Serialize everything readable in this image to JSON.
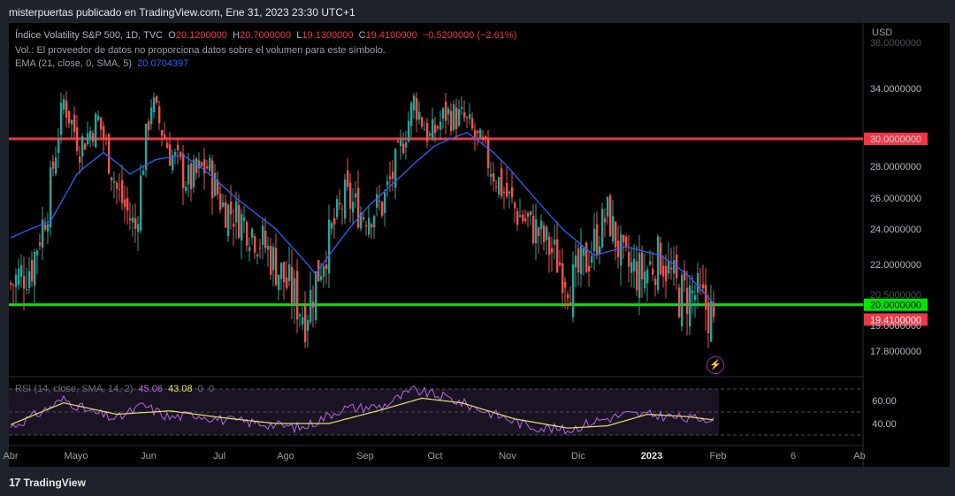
{
  "header": {
    "published": "misterpuertas publicado en TradingView.com, Ene 31, 2023 23:30 UTC+1"
  },
  "legend": {
    "symbol": "Índice Volatility S&P 500, 1D, TVC",
    "o_label": "O",
    "o_value": "20.1200000",
    "h_label": "H",
    "h_value": "20.7000000",
    "l_label": "L",
    "l_value": "19.1300000",
    "c_label": "C",
    "c_value": "19.4100000",
    "change": "−0.5200000 (−2.61%)",
    "volume_note": "Vol.: El proveedor de datos no proporciona datos sobre el volumen para este símbolo.",
    "ema_label": "EMA (21, close, 0, SMA, 5)",
    "ema_value": "20.0704397"
  },
  "rsi_legend": {
    "label": "RSI (14, close, SMA, 14, 2)",
    "rsi_value": "45.06",
    "sma_value": "43.08",
    "z1": "0",
    "z2": "0"
  },
  "currency": "USD",
  "footer": {
    "brand": "TradingView",
    "logo": "17"
  },
  "icons": {
    "bolt": "lightning-icon"
  },
  "colors": {
    "up": "#26a69a",
    "down": "#ef5350",
    "ema": "#2962ff",
    "resistance": "#f23645",
    "support": "#00e600",
    "rsi": "#b667e8",
    "rsi_sma": "#e4e36a"
  },
  "chart_data": [
    {
      "type": "candlestick",
      "series_name": "Índice Volatility S&P 500",
      "x_ticks": [
        "Abr",
        "Mayo",
        "Jun",
        "Jul",
        "Ago",
        "Sep",
        "Oct",
        "Nov",
        "Dic",
        "2023",
        "Feb",
        "6",
        "Ab"
      ],
      "y_ticks": [
        17.8,
        19,
        20.5,
        22,
        24,
        26,
        28,
        30,
        34,
        38
      ],
      "y_tick_labels": [
        "17.8000000",
        "19.0000000",
        "20.5000000",
        "22.0000000",
        "24.0000000",
        "26.0000000",
        "28.0000000",
        "30.0000000",
        "34.0000000",
        "38.0000000"
      ],
      "horizontal_lines": [
        {
          "value": 30,
          "label": "30.0000000",
          "color": "#f23645"
        },
        {
          "value": 20,
          "label": "20.0000000",
          "color": "#00e600"
        }
      ],
      "last_price": {
        "value": 19.41,
        "label": "19.4100000"
      },
      "waypoints": [
        {
          "d": 0,
          "v": 21.0
        },
        {
          "d": 8,
          "v": 22.0
        },
        {
          "d": 14,
          "v": 25.5
        },
        {
          "d": 20,
          "v": 33.0
        },
        {
          "d": 26,
          "v": 29.5
        },
        {
          "d": 33,
          "v": 31.5
        },
        {
          "d": 40,
          "v": 26.5
        },
        {
          "d": 47,
          "v": 24.0
        },
        {
          "d": 53,
          "v": 33.0
        },
        {
          "d": 60,
          "v": 29.0
        },
        {
          "d": 67,
          "v": 27.0
        },
        {
          "d": 74,
          "v": 28.0
        },
        {
          "d": 80,
          "v": 25.5
        },
        {
          "d": 88,
          "v": 24.5
        },
        {
          "d": 96,
          "v": 23.0
        },
        {
          "d": 104,
          "v": 21.0
        },
        {
          "d": 111,
          "v": 19.5
        },
        {
          "d": 119,
          "v": 23.0
        },
        {
          "d": 126,
          "v": 26.0
        },
        {
          "d": 133,
          "v": 25.0
        },
        {
          "d": 140,
          "v": 25.5
        },
        {
          "d": 146,
          "v": 28.5
        },
        {
          "d": 152,
          "v": 33.0
        },
        {
          "d": 158,
          "v": 30.0
        },
        {
          "d": 164,
          "v": 32.0
        },
        {
          "d": 171,
          "v": 31.5
        },
        {
          "d": 177,
          "v": 29.5
        },
        {
          "d": 184,
          "v": 27.0
        },
        {
          "d": 191,
          "v": 25.0
        },
        {
          "d": 198,
          "v": 24.0
        },
        {
          "d": 205,
          "v": 22.5
        },
        {
          "d": 212,
          "v": 21.0
        },
        {
          "d": 218,
          "v": 22.5
        },
        {
          "d": 225,
          "v": 25.0
        },
        {
          "d": 231,
          "v": 22.0
        },
        {
          "d": 238,
          "v": 21.5
        },
        {
          "d": 245,
          "v": 22.5
        },
        {
          "d": 252,
          "v": 20.5
        },
        {
          "d": 258,
          "v": 20.5
        },
        {
          "d": 265,
          "v": 19.4
        }
      ],
      "ema_waypoints": [
        {
          "d": 0,
          "v": 23.5
        },
        {
          "d": 15,
          "v": 24.5
        },
        {
          "d": 25,
          "v": 27.5
        },
        {
          "d": 35,
          "v": 29.0
        },
        {
          "d": 45,
          "v": 27.5
        },
        {
          "d": 55,
          "v": 28.5
        },
        {
          "d": 65,
          "v": 28.8
        },
        {
          "d": 75,
          "v": 27.5
        },
        {
          "d": 85,
          "v": 26.0
        },
        {
          "d": 100,
          "v": 24.0
        },
        {
          "d": 115,
          "v": 21.5
        },
        {
          "d": 125,
          "v": 23.5
        },
        {
          "d": 135,
          "v": 25.5
        },
        {
          "d": 148,
          "v": 27.5
        },
        {
          "d": 160,
          "v": 29.5
        },
        {
          "d": 172,
          "v": 30.5
        },
        {
          "d": 182,
          "v": 29.0
        },
        {
          "d": 195,
          "v": 26.5
        },
        {
          "d": 208,
          "v": 24.0
        },
        {
          "d": 220,
          "v": 22.5
        },
        {
          "d": 232,
          "v": 23.0
        },
        {
          "d": 245,
          "v": 22.5
        },
        {
          "d": 255,
          "v": 21.5
        },
        {
          "d": 265,
          "v": 20.07
        }
      ]
    },
    {
      "type": "line",
      "series_name": "RSI (14, close, SMA, 14, 2)",
      "y_ticks": [
        40,
        60
      ],
      "y_tick_labels": [
        "40.00",
        "60.00"
      ],
      "bands": [
        30,
        50,
        70
      ],
      "rsi_waypoints": [
        {
          "d": 0,
          "v": 37
        },
        {
          "d": 10,
          "v": 48
        },
        {
          "d": 20,
          "v": 61
        },
        {
          "d": 30,
          "v": 50
        },
        {
          "d": 40,
          "v": 44
        },
        {
          "d": 50,
          "v": 56
        },
        {
          "d": 60,
          "v": 45
        },
        {
          "d": 70,
          "v": 48
        },
        {
          "d": 80,
          "v": 43
        },
        {
          "d": 95,
          "v": 40
        },
        {
          "d": 110,
          "v": 36
        },
        {
          "d": 125,
          "v": 53
        },
        {
          "d": 140,
          "v": 55
        },
        {
          "d": 152,
          "v": 69
        },
        {
          "d": 165,
          "v": 62
        },
        {
          "d": 180,
          "v": 50
        },
        {
          "d": 195,
          "v": 38
        },
        {
          "d": 210,
          "v": 34
        },
        {
          "d": 220,
          "v": 42
        },
        {
          "d": 232,
          "v": 48
        },
        {
          "d": 245,
          "v": 47
        },
        {
          "d": 255,
          "v": 44
        },
        {
          "d": 265,
          "v": 45.06
        }
      ],
      "rsi_sma_waypoints": [
        {
          "d": 0,
          "v": 39
        },
        {
          "d": 20,
          "v": 58
        },
        {
          "d": 40,
          "v": 48
        },
        {
          "d": 60,
          "v": 51
        },
        {
          "d": 80,
          "v": 45
        },
        {
          "d": 100,
          "v": 40
        },
        {
          "d": 120,
          "v": 40
        },
        {
          "d": 140,
          "v": 52
        },
        {
          "d": 155,
          "v": 62
        },
        {
          "d": 170,
          "v": 58
        },
        {
          "d": 190,
          "v": 44
        },
        {
          "d": 210,
          "v": 36
        },
        {
          "d": 225,
          "v": 38
        },
        {
          "d": 240,
          "v": 48
        },
        {
          "d": 255,
          "v": 46
        },
        {
          "d": 265,
          "v": 43.08
        }
      ]
    }
  ]
}
